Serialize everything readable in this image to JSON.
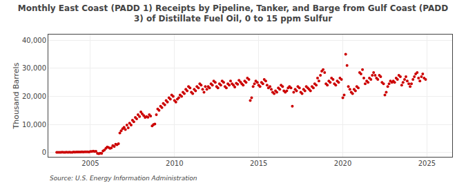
{
  "chart_data": {
    "type": "scatter",
    "title": "Monthly East Coast (PADD 1) Receipts by Pipeline, Tanker, and Barge from Gulf Coast (PADD\n3) of Distillate Fuel Oil, 0 to 15 ppm Sulfur",
    "ylabel": "Thousand Barrels",
    "source": "Source: U.S. Energy Information Administration",
    "color": "#cc0000",
    "grid": true,
    "xlim": [
      2002.5,
      2026.5
    ],
    "ylim": [
      -1500,
      42000
    ],
    "xticks": [
      2005,
      2010,
      2015,
      2020,
      2025
    ],
    "yticks": [
      0,
      {
        "value": 10000,
        "label": "10,000"
      },
      {
        "value": 20000,
        "label": "20,000"
      },
      {
        "value": 30000,
        "label": "30,000"
      },
      {
        "value": 40000,
        "label": "40,000"
      }
    ],
    "x": [
      2003.0,
      2003.08,
      2003.17,
      2003.25,
      2003.33,
      2003.42,
      2003.5,
      2003.58,
      2003.67,
      2003.75,
      2003.83,
      2003.92,
      2004.0,
      2004.08,
      2004.17,
      2004.25,
      2004.33,
      2004.42,
      2004.5,
      2004.58,
      2004.67,
      2004.75,
      2004.83,
      2004.92,
      2005.0,
      2005.08,
      2005.17,
      2005.25,
      2005.33,
      2005.42,
      2005.5,
      2005.58,
      2005.67,
      2005.75,
      2005.83,
      2005.92,
      2006.0,
      2006.08,
      2006.17,
      2006.25,
      2006.33,
      2006.42,
      2006.5,
      2006.58,
      2006.67,
      2006.75,
      2006.83,
      2006.92,
      2007.0,
      2007.08,
      2007.17,
      2007.25,
      2007.33,
      2007.42,
      2007.5,
      2007.58,
      2007.67,
      2007.75,
      2007.83,
      2007.92,
      2008.0,
      2008.08,
      2008.17,
      2008.25,
      2008.33,
      2008.42,
      2008.5,
      2008.58,
      2008.67,
      2008.75,
      2008.83,
      2008.92,
      2009.0,
      2009.08,
      2009.17,
      2009.25,
      2009.33,
      2009.42,
      2009.5,
      2009.58,
      2009.67,
      2009.75,
      2009.83,
      2009.92,
      2010.0,
      2010.08,
      2010.17,
      2010.25,
      2010.33,
      2010.42,
      2010.5,
      2010.58,
      2010.67,
      2010.75,
      2010.83,
      2010.92,
      2011.0,
      2011.08,
      2011.17,
      2011.25,
      2011.33,
      2011.42,
      2011.5,
      2011.58,
      2011.67,
      2011.75,
      2011.83,
      2011.92,
      2012.0,
      2012.08,
      2012.17,
      2012.25,
      2012.33,
      2012.42,
      2012.5,
      2012.58,
      2012.67,
      2012.75,
      2012.83,
      2012.92,
      2013.0,
      2013.08,
      2013.17,
      2013.25,
      2013.33,
      2013.42,
      2013.5,
      2013.58,
      2013.67,
      2013.75,
      2013.83,
      2013.92,
      2014.0,
      2014.08,
      2014.17,
      2014.25,
      2014.33,
      2014.42,
      2014.5,
      2014.58,
      2014.67,
      2014.75,
      2014.83,
      2014.92,
      2015.0,
      2015.08,
      2015.17,
      2015.25,
      2015.33,
      2015.42,
      2015.5,
      2015.58,
      2015.67,
      2015.75,
      2015.83,
      2015.92,
      2016.0,
      2016.08,
      2016.17,
      2016.25,
      2016.33,
      2016.42,
      2016.5,
      2016.58,
      2016.67,
      2016.75,
      2016.83,
      2016.92,
      2017.0,
      2017.08,
      2017.17,
      2017.25,
      2017.33,
      2017.42,
      2017.5,
      2017.58,
      2017.67,
      2017.75,
      2017.83,
      2017.92,
      2018.0,
      2018.08,
      2018.17,
      2018.25,
      2018.33,
      2018.42,
      2018.5,
      2018.58,
      2018.67,
      2018.75,
      2018.83,
      2018.92,
      2019.0,
      2019.08,
      2019.17,
      2019.25,
      2019.33,
      2019.42,
      2019.5,
      2019.58,
      2019.67,
      2019.75,
      2019.83,
      2019.92,
      2020.0,
      2020.08,
      2020.17,
      2020.25,
      2020.33,
      2020.42,
      2020.5,
      2020.58,
      2020.67,
      2020.75,
      2020.83,
      2020.92,
      2021.0,
      2021.08,
      2021.17,
      2021.25,
      2021.33,
      2021.42,
      2021.5,
      2021.58,
      2021.67,
      2021.75,
      2021.83,
      2021.92,
      2022.0,
      2022.08,
      2022.17,
      2022.25,
      2022.33,
      2022.42,
      2022.5,
      2022.58,
      2022.67,
      2022.75,
      2022.83,
      2022.92,
      2023.0,
      2023.08,
      2023.17,
      2023.25,
      2023.33,
      2023.42,
      2023.5,
      2023.58,
      2023.67,
      2023.75,
      2023.83,
      2023.92,
      2024.0,
      2024.08,
      2024.17,
      2024.25,
      2024.33,
      2024.42,
      2024.5,
      2024.58,
      2024.67,
      2024.75,
      2024.83,
      2024.92
    ],
    "values": [
      100,
      120,
      80,
      110,
      150,
      90,
      100,
      130,
      110,
      140,
      120,
      100,
      200,
      180,
      220,
      190,
      250,
      210,
      280,
      240,
      300,
      260,
      280,
      240,
      400,
      380,
      500,
      420,
      480,
      -300,
      -400,
      -200,
      -300,
      600,
      900,
      1500,
      2000,
      1800,
      1500,
      1700,
      2500,
      2200,
      3000,
      2800,
      3200,
      7000,
      7800,
      8500,
      9000,
      8200,
      9800,
      8800,
      10500,
      9800,
      11500,
      11000,
      12500,
      12000,
      13500,
      12800,
      14500,
      13800,
      13200,
      12500,
      12800,
      12600,
      13500,
      13000,
      9500,
      10000,
      10200,
      13500,
      15500,
      15000,
      16500,
      16000,
      17500,
      17000,
      18500,
      18000,
      19500,
      19000,
      20500,
      20000,
      18500,
      18000,
      19000,
      19500,
      20500,
      20000,
      21500,
      21000,
      22500,
      22000,
      23500,
      23000,
      21500,
      21000,
      22500,
      22000,
      23500,
      23000,
      24500,
      24000,
      22500,
      21500,
      23500,
      22500,
      23500,
      23000,
      24500,
      24000,
      25500,
      25000,
      23500,
      23000,
      24500,
      24000,
      25500,
      25000,
      23500,
      23000,
      24500,
      24000,
      25500,
      24500,
      24000,
      23300,
      24700,
      24300,
      25700,
      25100,
      24500,
      24000,
      25500,
      25000,
      26500,
      26000,
      18500,
      19500,
      23500,
      24500,
      25500,
      25000,
      24000,
      23500,
      25000,
      24500,
      26000,
      25500,
      24000,
      23000,
      23500,
      22500,
      21500,
      21000,
      22000,
      21500,
      23000,
      22500,
      24000,
      23500,
      22000,
      21500,
      22000,
      23000,
      23500,
      23000,
      16500,
      21500,
      22500,
      22000,
      23500,
      23000,
      21500,
      21000,
      22500,
      22000,
      23500,
      23000,
      22500,
      22000,
      23500,
      23000,
      24500,
      24000,
      26500,
      25500,
      27500,
      29000,
      29500,
      28500,
      24500,
      24000,
      25500,
      25000,
      26500,
      26000,
      24500,
      24000,
      25500,
      25000,
      26500,
      26000,
      19500,
      20500,
      35000,
      31000,
      23500,
      22500,
      21500,
      21000,
      22500,
      22000,
      23500,
      23000,
      28500,
      28000,
      29500,
      26500,
      24500,
      25500,
      25000,
      26500,
      26000,
      27500,
      28500,
      27500,
      26500,
      26000,
      27500,
      27000,
      25000,
      24500,
      20500,
      21500,
      23500,
      24500,
      25500,
      25000,
      25500,
      25000,
      26500,
      26000,
      27500,
      27000,
      24000,
      25000,
      26000,
      27000,
      25500,
      24500,
      23500,
      24500,
      26000,
      27000,
      28000,
      28500,
      26500,
      25500,
      27000,
      28000,
      26500,
      26000
    ]
  }
}
